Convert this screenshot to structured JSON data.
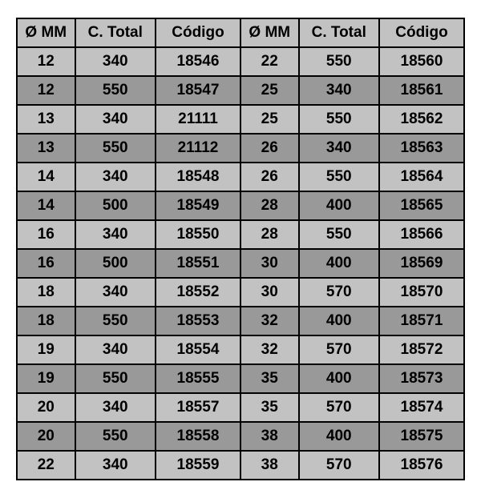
{
  "table": {
    "type": "table",
    "background_color": "#ffffff",
    "border_color": "#000000",
    "header_bg": "#c2c2c2",
    "row_odd_bg": "#c2c2c2",
    "row_even_bg": "#999999",
    "font_family": "Arial",
    "header_fontsize": 19,
    "cell_fontsize": 19,
    "font_weight": "bold",
    "text_color": "#000000",
    "columns": [
      "Ø MM",
      "C. Total",
      "Código",
      "Ø MM",
      "C. Total",
      "Código"
    ],
    "col_widths_pct": [
      13,
      18,
      19,
      13,
      18,
      19
    ],
    "rows": [
      [
        "12",
        "340",
        "18546",
        "22",
        "550",
        "18560"
      ],
      [
        "12",
        "550",
        "18547",
        "25",
        "340",
        "18561"
      ],
      [
        "13",
        "340",
        "21111",
        "25",
        "550",
        "18562"
      ],
      [
        "13",
        "550",
        "21112",
        "26",
        "340",
        "18563"
      ],
      [
        "14",
        "340",
        "18548",
        "26",
        "550",
        "18564"
      ],
      [
        "14",
        "500",
        "18549",
        "28",
        "400",
        "18565"
      ],
      [
        "16",
        "340",
        "18550",
        "28",
        "550",
        "18566"
      ],
      [
        "16",
        "500",
        "18551",
        "30",
        "400",
        "18569"
      ],
      [
        "18",
        "340",
        "18552",
        "30",
        "570",
        "18570"
      ],
      [
        "18",
        "550",
        "18553",
        "32",
        "400",
        "18571"
      ],
      [
        "19",
        "340",
        "18554",
        "32",
        "570",
        "18572"
      ],
      [
        "19",
        "550",
        "18555",
        "35",
        "400",
        "18573"
      ],
      [
        "20",
        "340",
        "18557",
        "35",
        "570",
        "18574"
      ],
      [
        "20",
        "550",
        "18558",
        "38",
        "400",
        "18575"
      ],
      [
        "22",
        "340",
        "18559",
        "38",
        "570",
        "18576"
      ]
    ]
  }
}
